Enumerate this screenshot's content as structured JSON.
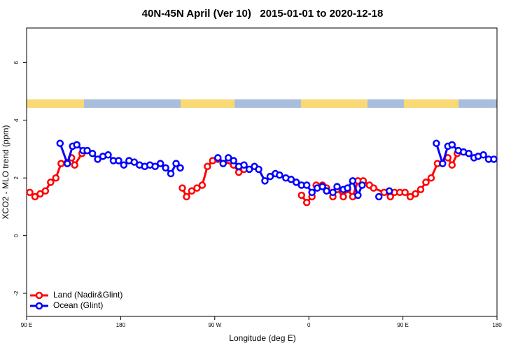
{
  "chart_data": {
    "type": "line",
    "title": "40N-45N April (Ver 10)   2015-01-01 to 2020-12-18",
    "x_label": "Longitude (deg E)",
    "y_label": "XCO2 - MLO trend (ppm)",
    "xlim": [
      90,
      540
    ],
    "ylim": [
      -2.8,
      7.2
    ],
    "xticks": [
      {
        "value": 90,
        "label": "90 E"
      },
      180,
      {
        "value": 270,
        "label": "90 W"
      },
      {
        "value": 360,
        "label": "0"
      },
      {
        "value": 450,
        "label": "90 E"
      },
      {
        "value": 540,
        "label": "180"
      }
    ],
    "yticks": [
      -2,
      0,
      2,
      4,
      6
    ],
    "legend": "bottomleft",
    "series": [
      {
        "name": "Land (Nadir&Glint)",
        "color": "#ff0000",
        "x": [
          93,
          98,
          103,
          108,
          113,
          118,
          123,
          133,
          136,
          143,
          null,
          239,
          243,
          248,
          253,
          258,
          263,
          268,
          273,
          288,
          293,
          298,
          null,
          353,
          358,
          363,
          367,
          373,
          377,
          383,
          387,
          393,
          397,
          402,
          407,
          412,
          418,
          422,
          432,
          438,
          442,
          447,
          452,
          457,
          462,
          467,
          472,
          477,
          483,
          493,
          497,
          502
        ],
        "values": [
          1.5,
          1.35,
          1.45,
          1.55,
          1.85,
          2.0,
          2.5,
          2.7,
          2.45,
          2.85,
          null,
          1.65,
          1.35,
          1.55,
          1.65,
          1.75,
          2.4,
          2.6,
          2.65,
          2.45,
          2.2,
          2.3,
          null,
          1.4,
          1.15,
          1.35,
          1.75,
          1.75,
          1.65,
          1.35,
          1.6,
          1.35,
          1.6,
          1.35,
          1.9,
          1.9,
          1.75,
          1.65,
          1.5,
          1.35,
          1.5,
          1.5,
          1.5,
          1.35,
          1.45,
          1.6,
          1.85,
          2.0,
          2.5,
          2.7,
          2.45,
          2.85
        ]
      },
      {
        "name": "Ocean (Glint)",
        "color": "#0000ff",
        "x": [
          122,
          129,
          134,
          138,
          144,
          148,
          153,
          158,
          163,
          168,
          173,
          178,
          183,
          188,
          193,
          198,
          203,
          208,
          213,
          218,
          223,
          228,
          233,
          237,
          null,
          273,
          278,
          283,
          288,
          293,
          298,
          303,
          308,
          312,
          318,
          323,
          328,
          332,
          338,
          343,
          348,
          353,
          358,
          363,
          368,
          373,
          377,
          383,
          387,
          393,
          397,
          402,
          407,
          411,
          null,
          427,
          null,
          437,
          null,
          482,
          488,
          493,
          497,
          503,
          508,
          513,
          518,
          522,
          527,
          532,
          537
        ],
        "values": [
          3.2,
          2.5,
          3.1,
          3.15,
          2.95,
          2.95,
          2.85,
          2.65,
          2.75,
          2.8,
          2.6,
          2.6,
          2.45,
          2.6,
          2.55,
          2.45,
          2.4,
          2.45,
          2.4,
          2.5,
          2.35,
          2.15,
          2.5,
          2.35,
          null,
          2.7,
          2.5,
          2.7,
          2.6,
          2.4,
          2.45,
          2.3,
          2.4,
          2.3,
          1.9,
          2.05,
          2.15,
          2.1,
          2.0,
          1.95,
          1.85,
          1.75,
          1.75,
          1.5,
          1.65,
          1.7,
          1.55,
          1.5,
          1.7,
          1.6,
          1.65,
          1.9,
          1.4,
          1.75,
          null,
          1.35,
          null,
          1.55,
          null,
          3.2,
          2.5,
          3.1,
          3.15,
          2.95,
          2.9,
          2.85,
          2.7,
          2.75,
          2.8,
          2.65,
          2.65
        ]
      }
    ]
  }
}
